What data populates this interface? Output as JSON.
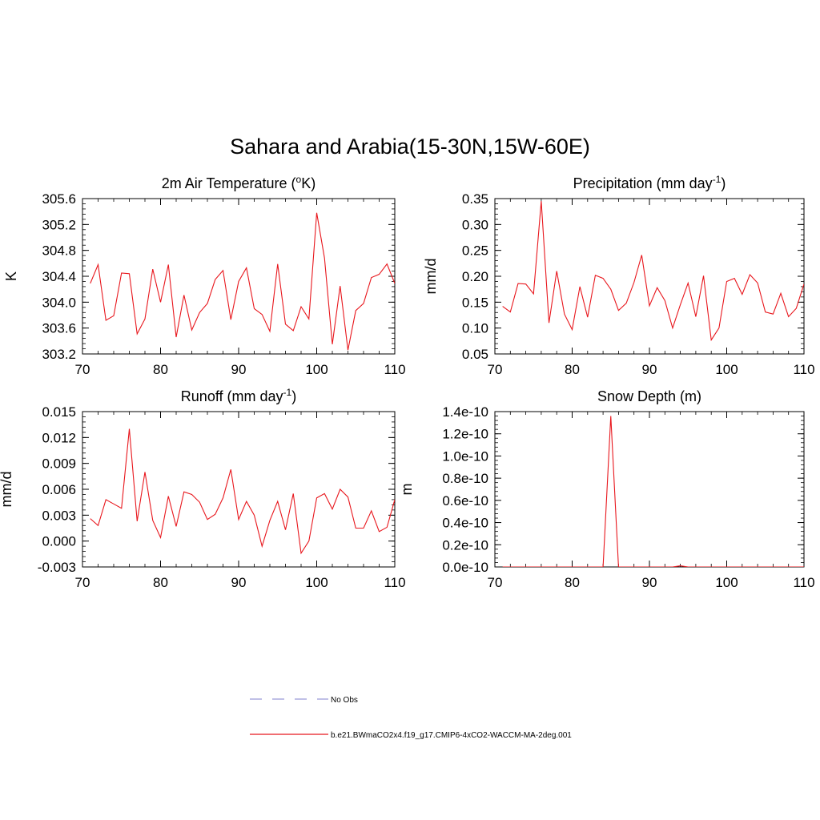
{
  "title": "Sahara and Arabia(15-30N,15W-60E)",
  "colors": {
    "model_line": "#e8171d",
    "obs_line": "#9a9ad6",
    "axis": "#000000"
  },
  "legend": [
    {
      "label": "No Obs",
      "style": "dashed",
      "color": "#9a9ad6"
    },
    {
      "label": "b.e21.BWmaCO2x4.f19_g17.CMIP6-4xCO2-WACCM-MA-2deg.001",
      "style": "solid",
      "color": "#e8171d"
    }
  ],
  "chart_data": [
    {
      "type": "line",
      "title": "2m Air Temperature (°K)",
      "title_main": "2m Air Temperature (",
      "title_sup": "o",
      "title_end": "K)",
      "ylabel": "K",
      "xlim": [
        70,
        110
      ],
      "ylim": [
        303.2,
        305.6
      ],
      "xticks": [
        70,
        80,
        90,
        100,
        110
      ],
      "yticks": [
        "303.2",
        "303.6",
        "304.0",
        "304.4",
        "304.8",
        "305.2",
        "305.6"
      ],
      "yminor": 0.08,
      "x": [
        71,
        72,
        73,
        74,
        75,
        76,
        77,
        78,
        79,
        80,
        81,
        82,
        83,
        84,
        85,
        86,
        87,
        88,
        89,
        90,
        91,
        92,
        93,
        94,
        95,
        96,
        97,
        98,
        99,
        100,
        101,
        102,
        103,
        104,
        105,
        106,
        107,
        108,
        109,
        110
      ],
      "series": [
        {
          "values": [
            304.29,
            304.58,
            303.72,
            303.79,
            304.45,
            304.44,
            303.51,
            303.74,
            304.51,
            304.0,
            304.58,
            303.46,
            304.11,
            303.57,
            303.84,
            303.98,
            304.35,
            304.49,
            303.73,
            304.32,
            304.53,
            303.9,
            303.81,
            303.55,
            304.59,
            303.66,
            303.56,
            303.93,
            303.74,
            305.38,
            304.68,
            303.35,
            304.25,
            303.26,
            303.87,
            303.98,
            304.38,
            304.43,
            304.59,
            304.29
          ]
        }
      ]
    },
    {
      "type": "line",
      "title": "Precipitation (mm day-1)",
      "title_main": "Precipitation (mm day",
      "title_sup": "-1",
      "title_end": ")",
      "ylabel": "mm/d",
      "xlim": [
        70,
        110
      ],
      "ylim": [
        0.05,
        0.35
      ],
      "xticks": [
        70,
        80,
        90,
        100,
        110
      ],
      "yticks": [
        "0.05",
        "0.10",
        "0.15",
        "0.20",
        "0.25",
        "0.30",
        "0.35"
      ],
      "yminor": 0.01,
      "x": [
        71,
        72,
        73,
        74,
        75,
        76,
        77,
        78,
        79,
        80,
        81,
        82,
        83,
        84,
        85,
        86,
        87,
        88,
        89,
        90,
        91,
        92,
        93,
        94,
        95,
        96,
        97,
        98,
        99,
        100,
        101,
        102,
        103,
        104,
        105,
        106,
        107,
        108,
        109,
        110
      ],
      "series": [
        {
          "values": [
            0.142,
            0.131,
            0.186,
            0.185,
            0.166,
            0.345,
            0.11,
            0.21,
            0.127,
            0.097,
            0.18,
            0.121,
            0.202,
            0.196,
            0.175,
            0.134,
            0.148,
            0.188,
            0.241,
            0.143,
            0.178,
            0.153,
            0.1,
            0.145,
            0.187,
            0.122,
            0.201,
            0.077,
            0.1,
            0.19,
            0.196,
            0.165,
            0.203,
            0.187,
            0.131,
            0.127,
            0.167,
            0.122,
            0.138,
            0.185
          ]
        }
      ]
    },
    {
      "type": "line",
      "title": "Runoff (mm day-1)",
      "title_main": "Runoff (mm day",
      "title_sup": "-1",
      "title_end": ")",
      "ylabel": "mm/d",
      "xlim": [
        70,
        110
      ],
      "ylim": [
        -0.003,
        0.015
      ],
      "xticks": [
        70,
        80,
        90,
        100,
        110
      ],
      "yticks": [
        "-0.003",
        "0.000",
        "0.003",
        "0.006",
        "0.009",
        "0.012",
        "0.015"
      ],
      "yminor": 0.0006,
      "x": [
        71,
        72,
        73,
        74,
        75,
        76,
        77,
        78,
        79,
        80,
        81,
        82,
        83,
        84,
        85,
        86,
        87,
        88,
        89,
        90,
        91,
        92,
        93,
        94,
        95,
        96,
        97,
        98,
        99,
        100,
        101,
        102,
        103,
        104,
        105,
        106,
        107,
        108,
        109,
        110
      ],
      "series": [
        {
          "values": [
            0.0026,
            0.0018,
            0.0048,
            0.0043,
            0.0038,
            0.013,
            0.0023,
            0.008,
            0.0024,
            0.0004,
            0.0052,
            0.0017,
            0.0057,
            0.0054,
            0.0045,
            0.0025,
            0.0031,
            0.005,
            0.0083,
            0.0025,
            0.0046,
            0.003,
            -0.0006,
            0.0024,
            0.0046,
            0.0013,
            0.0055,
            -0.0014,
            0.0,
            0.005,
            0.0055,
            0.0037,
            0.006,
            0.0051,
            0.0015,
            0.0015,
            0.0035,
            0.0011,
            0.0016,
            0.0048
          ]
        }
      ]
    },
    {
      "type": "line",
      "title": "Snow Depth (m)",
      "ylabel": "m",
      "xlim": [
        70,
        110
      ],
      "ylim": [
        0,
        1.4e-10
      ],
      "xticks": [
        70,
        80,
        90,
        100,
        110
      ],
      "yticks": [
        "0.0e-10",
        "0.2e-10",
        "0.4e-10",
        "0.6e-10",
        "0.8e-10",
        "1.0e-10",
        "1.2e-10",
        "1.4e-10"
      ],
      "yminor": 4e-12,
      "x": [
        71,
        72,
        73,
        74,
        75,
        76,
        77,
        78,
        79,
        80,
        81,
        82,
        83,
        84,
        85,
        86,
        87,
        88,
        89,
        90,
        91,
        92,
        93,
        94,
        95,
        96,
        97,
        98,
        99,
        100,
        101,
        102,
        103,
        104,
        105,
        106,
        107,
        108,
        109,
        110
      ],
      "series": [
        {
          "values": [
            0,
            0,
            0,
            0,
            0,
            0,
            0,
            0,
            0,
            0,
            0,
            0,
            0,
            0,
            1.36e-10,
            0,
            0,
            0,
            0,
            0,
            0,
            0,
            0,
            1e-12,
            0,
            0,
            0,
            0,
            0,
            0,
            0,
            0,
            0,
            0,
            0,
            0,
            0,
            0,
            0,
            0
          ]
        }
      ]
    }
  ]
}
